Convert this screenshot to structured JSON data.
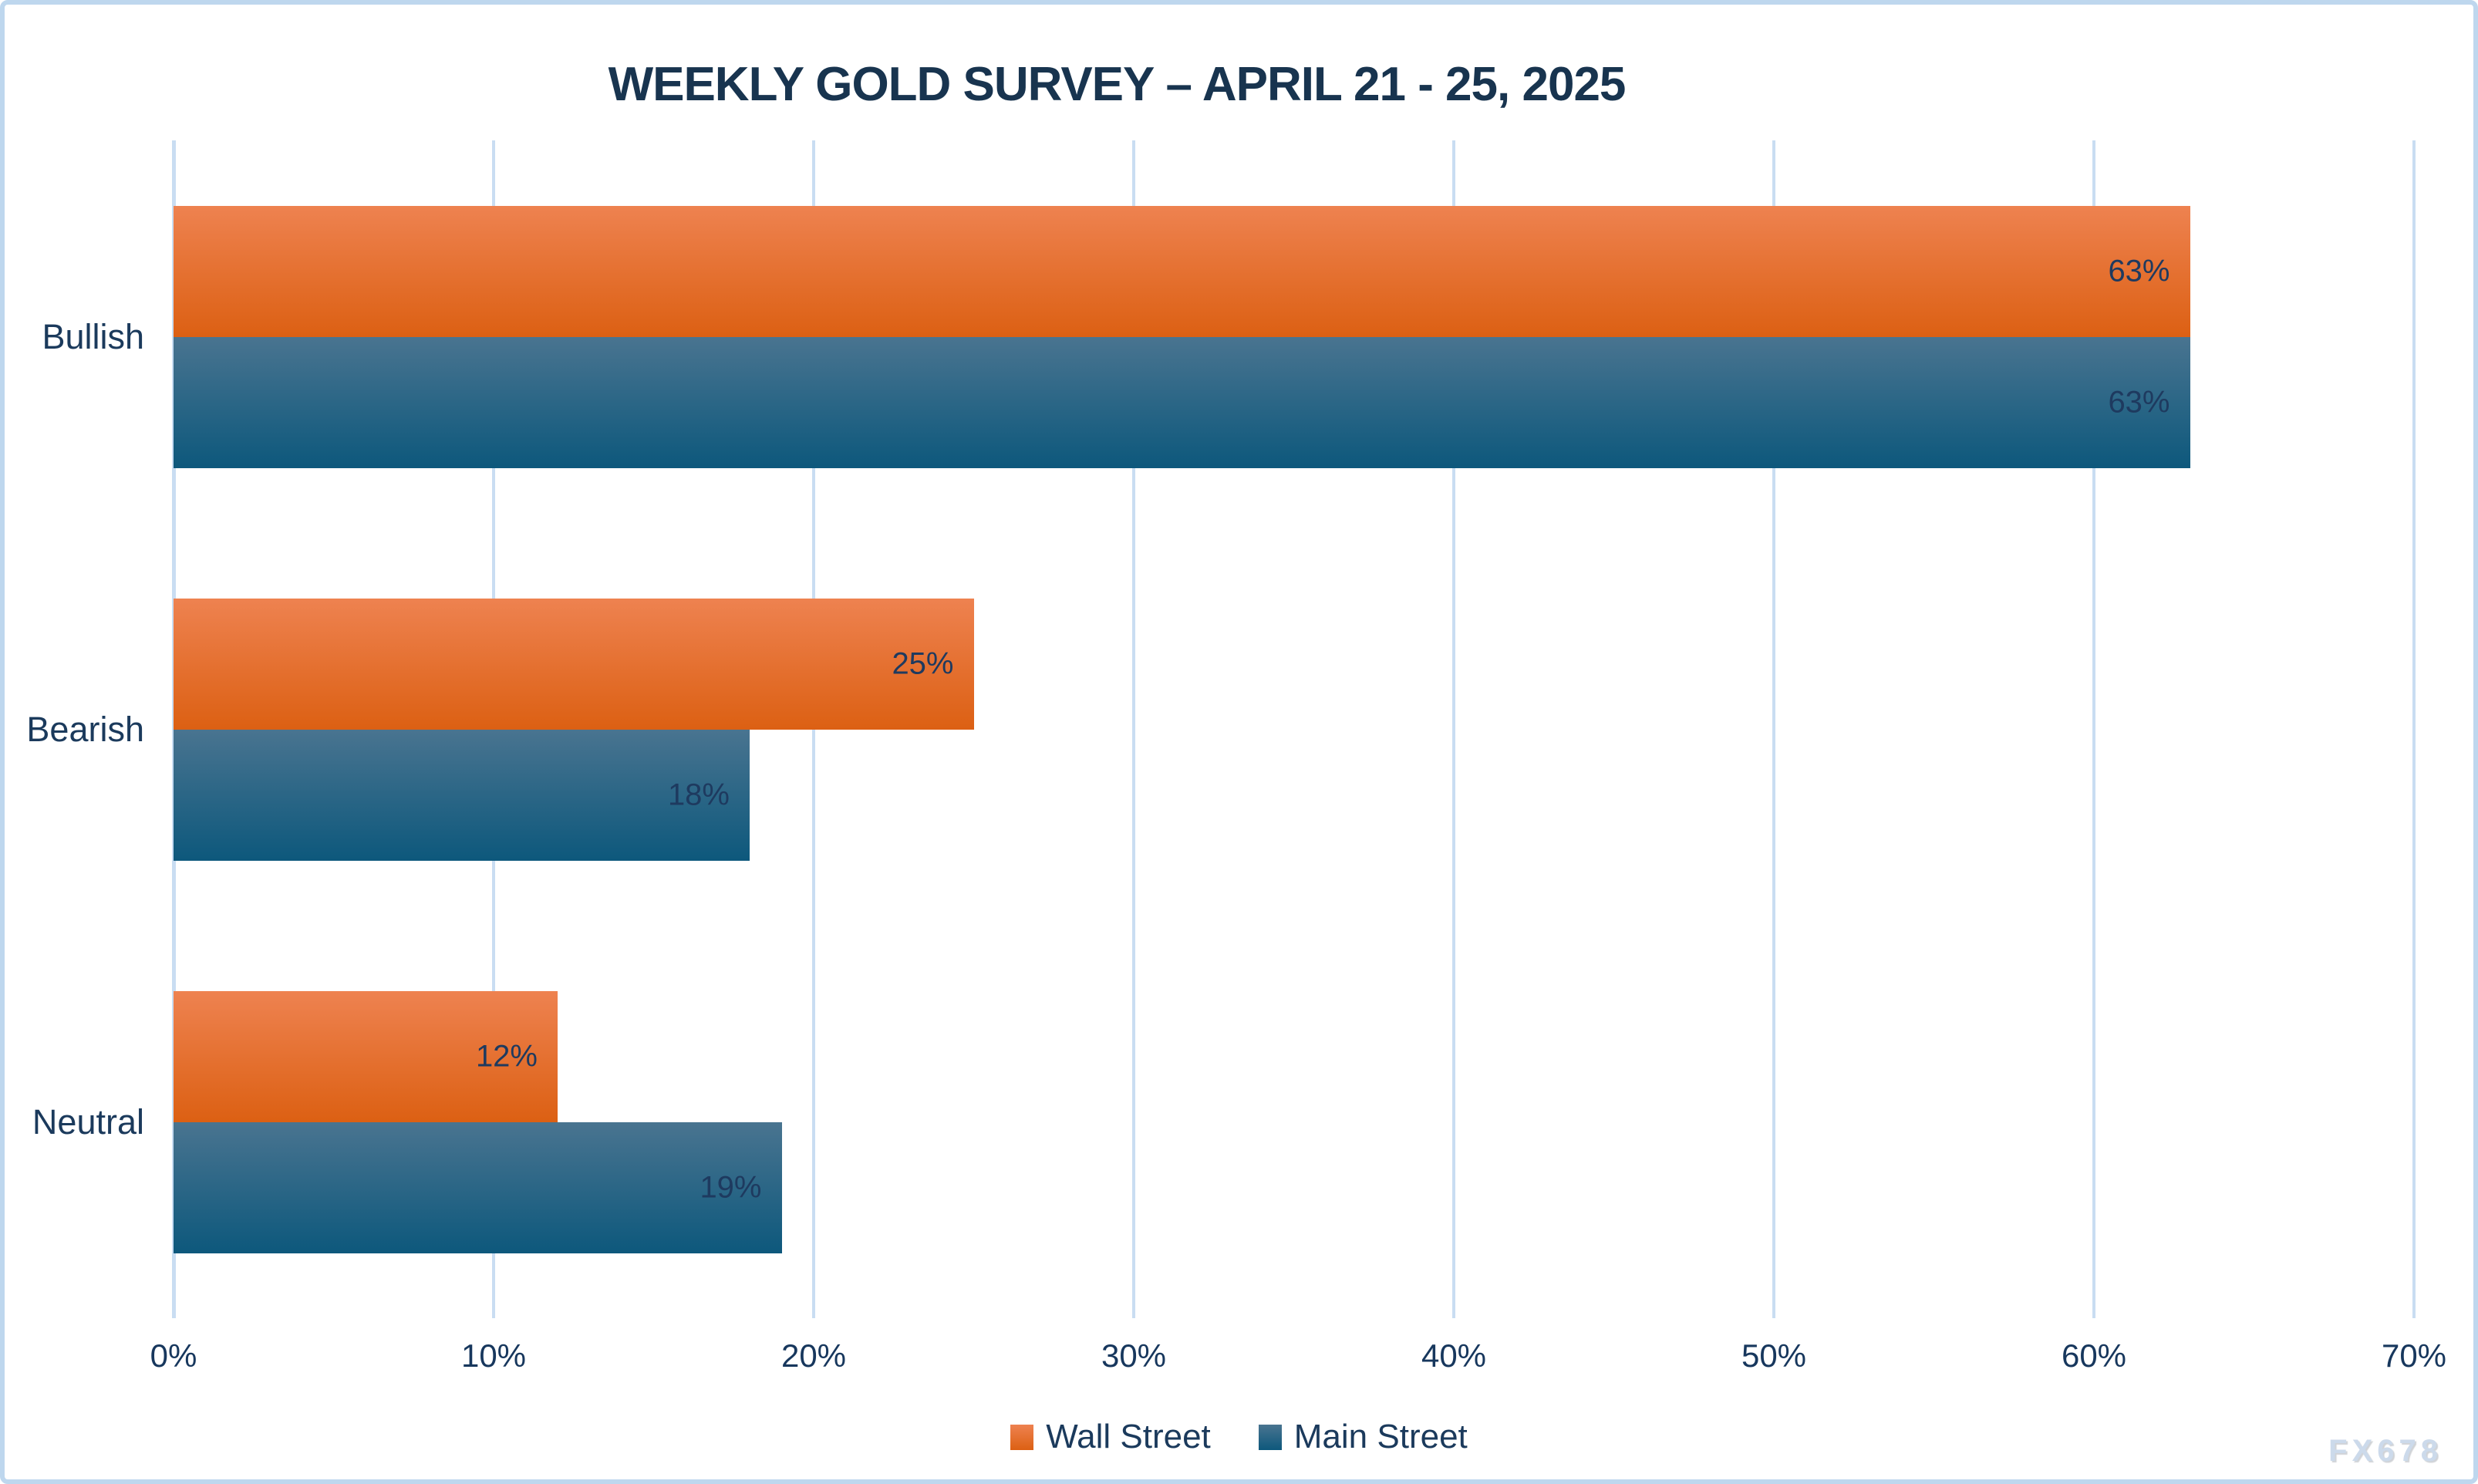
{
  "title": "WEEKLY GOLD SURVEY – APRIL 21 - 25, 2025",
  "watermark": "FX678",
  "colors": {
    "frame_border": "#BED7EE",
    "background": "#FFFFFF",
    "title_text": "#18344F",
    "axis_text": "#17375D",
    "category_text": "#1B3A5C",
    "data_label_text": "#1E3A5F",
    "gridline": "#C9DDF2",
    "watermark_text": "#CCDAEB",
    "wall_street_top": "#EE8250",
    "wall_street_bottom": "#DC6013",
    "main_street_top": "#497490",
    "main_street_bottom": "#0D587C"
  },
  "chart_data": {
    "type": "bar",
    "orientation": "horizontal",
    "title": "WEEKLY GOLD SURVEY – APRIL 21 - 25, 2025",
    "categories": [
      "Bullish",
      "Bearish",
      "Neutral"
    ],
    "series": [
      {
        "name": "Wall Street",
        "values": [
          63,
          25,
          12
        ],
        "labels": [
          "63%",
          "25%",
          "12%"
        ],
        "color_top": "#EE8250",
        "color_bottom": "#DC6013"
      },
      {
        "name": "Main Street",
        "values": [
          63,
          18,
          19
        ],
        "labels": [
          "63%",
          "18%",
          "19%"
        ],
        "color_top": "#497490",
        "color_bottom": "#0D587C"
      }
    ],
    "xlabel": "",
    "ylabel": "",
    "xlim": [
      0,
      70
    ],
    "x_tick_step": 10,
    "x_tick_labels": [
      "0%",
      "10%",
      "20%",
      "30%",
      "40%",
      "50%",
      "60%",
      "70%"
    ],
    "grid": true,
    "legend_position": "bottom",
    "value_suffix": "%"
  }
}
